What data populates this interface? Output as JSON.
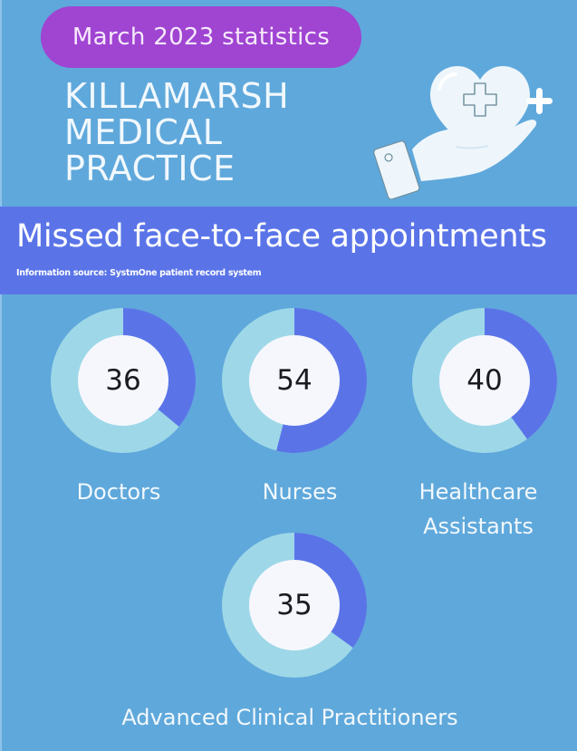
{
  "header": {
    "period_badge": "March 2023 statistics",
    "practice_name_lines": [
      "KILLAMARSH",
      "MEDICAL",
      "PRACTICE"
    ],
    "illustration_icon": "hand-holding-heart-with-plus-icon"
  },
  "banner": {
    "title": "Missed face-to-face appointments",
    "source": "Information source: SystmOne patient record system"
  },
  "colors": {
    "background": "#5fa8db",
    "badge": "#a044d2",
    "banner": "#5a74e8",
    "donut_filled": "#5a74e8",
    "donut_track": "#9ed8e8",
    "donut_center": "#f6f7fd"
  },
  "chart_data": {
    "type": "donut",
    "title": "Missed face-to-face appointments",
    "subtitle": "Information source: SystmOne patient record system",
    "period": "March 2023",
    "scale_max": 100,
    "categories": [
      "Doctors",
      "Nurses",
      "Healthcare Assistants",
      "Advanced Clinical Practitioners"
    ],
    "values": [
      36,
      54,
      40,
      35
    ],
    "items": [
      {
        "label": "Doctors",
        "label_lines": [
          "Doctors"
        ],
        "value": 36
      },
      {
        "label": "Nurses",
        "label_lines": [
          "Nurses"
        ],
        "value": 54
      },
      {
        "label": "Healthcare Assistants",
        "label_lines": [
          "Healthcare",
          "Assistants"
        ],
        "value": 40
      },
      {
        "label": "Advanced Clinical Practitioners",
        "label_lines": [
          "Advanced Clinical Practitioners"
        ],
        "value": 35
      }
    ],
    "legend": "none",
    "grid": false
  }
}
